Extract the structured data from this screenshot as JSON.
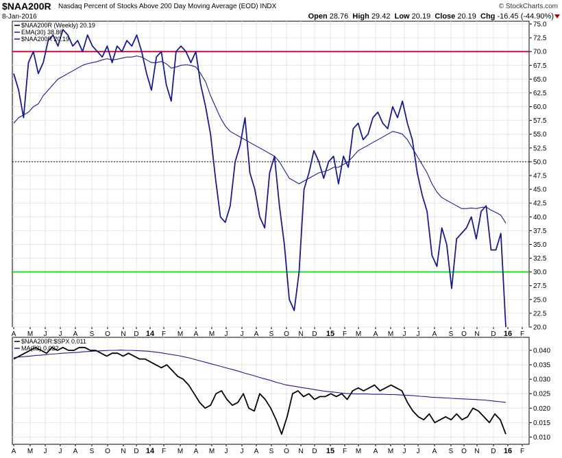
{
  "header": {
    "symbol": "$NAA200R",
    "description": "Nasdaq Percent of Stocks Above 200 Day Moving Average (EOD)  INDX",
    "date": "8-Jan-2016",
    "brand": "© StockCharts.com",
    "open_label": "Open",
    "open": "28.76",
    "high_label": "High",
    "high": "29.42",
    "low_label": "Low",
    "low": "20.19",
    "close_label": "Close",
    "close": "20.19",
    "chg_label": "Chg",
    "chg": "-16.45 (-44.90%)"
  },
  "chart_data": [
    {
      "type": "line",
      "title": "$NAA200R (Weekly) 20.19",
      "legend": [
        {
          "text": "$NAA200R (Weekly) 20.19",
          "color": "#000000"
        },
        {
          "text": "EMA(30) 38.86",
          "color": "#1a1a8c"
        },
        {
          "text": "$NAA200R 20.19",
          "color": "#1a1a8c"
        }
      ],
      "legend_placement": "top-left",
      "y_ticks": [
        "75.0",
        "72.5",
        "70.0",
        "67.5",
        "65.0",
        "62.5",
        "60.0",
        "57.5",
        "55.0",
        "52.5",
        "50.0",
        "47.5",
        "45.0",
        "42.5",
        "40.0",
        "37.5",
        "35.0",
        "32.5",
        "30.0",
        "27.5",
        "25.0",
        "22.5",
        "20.0"
      ],
      "ylim": [
        20,
        75.5
      ],
      "x_ticks": [
        "A",
        "M",
        "J",
        "J",
        "A",
        "S",
        "O",
        "N",
        "D",
        "14",
        "F",
        "M",
        "A",
        "M",
        "J",
        "J",
        "A",
        "S",
        "O",
        "N",
        "D",
        "15",
        "F",
        "M",
        "A",
        "M",
        "J",
        "J",
        "A",
        "S",
        "O",
        "N",
        "D",
        "16",
        "F"
      ],
      "reference_lines": [
        {
          "value": 70,
          "color": "#c0103c",
          "style": "solid"
        },
        {
          "value": 50,
          "color": "#000000",
          "style": "dotted"
        },
        {
          "value": 30,
          "color": "#22dd22",
          "style": "solid"
        }
      ],
      "series": [
        {
          "color": "#1a1a8c",
          "values": [
            66,
            63,
            58,
            68,
            70,
            66,
            68,
            72,
            73,
            71,
            74,
            73,
            71,
            72,
            70,
            73,
            71,
            70,
            69,
            71,
            68,
            71,
            70,
            72,
            71,
            73,
            70,
            66,
            63,
            69,
            70,
            64,
            61,
            70,
            71,
            70,
            68,
            70,
            64,
            60,
            55,
            47,
            40,
            39,
            42,
            50,
            53,
            58,
            48,
            45,
            40,
            38,
            48,
            51,
            42,
            35,
            25,
            23,
            30,
            45,
            48,
            52,
            50,
            47,
            50,
            51,
            46,
            51,
            49,
            56,
            57,
            54,
            55,
            58,
            59,
            57,
            56,
            60,
            58,
            61,
            57,
            54,
            48,
            44,
            41,
            33,
            31,
            38,
            35,
            27,
            36,
            37,
            38,
            40,
            36,
            41,
            42,
            34,
            34,
            37,
            20
          ]
        },
        {
          "color": "#1a1a8c",
          "values": [
            57,
            58,
            58.5,
            59,
            60,
            60.5,
            62,
            63,
            64,
            65,
            65.5,
            66,
            66.5,
            67,
            67.5,
            67.8,
            68,
            68.2,
            68.5,
            68.7,
            68.5,
            68.6,
            68.8,
            69,
            69,
            69.2,
            69,
            68.5,
            68,
            68,
            68.2,
            67.8,
            67,
            67.2,
            67.5,
            67.6,
            67.5,
            67.2,
            66,
            64.5,
            62,
            60,
            58,
            56.5,
            55.5,
            55,
            54.5,
            54,
            53.5,
            53,
            52.5,
            52,
            51.5,
            51,
            50,
            48.5,
            47,
            46.5,
            46,
            46.5,
            47,
            47.5,
            48,
            48.2,
            48.5,
            49,
            49,
            49.5,
            50,
            51,
            52,
            52.5,
            53,
            53.5,
            54,
            54.5,
            55,
            55.5,
            55.3,
            55,
            54,
            52.5,
            51,
            49.5,
            48,
            46,
            44.5,
            43.5,
            43,
            42.5,
            42,
            41.5,
            41.5,
            41.6,
            41.5,
            41.7,
            41.8,
            41.2,
            40.8,
            40.3,
            38.86
          ]
        }
      ]
    },
    {
      "type": "line",
      "title": "$NAA200R:$SPX 0.011",
      "legend": [
        {
          "text": "$NAA200R:$SPX 0.011",
          "color": "#000000"
        },
        {
          "text": "MA(52) 0.022",
          "color": "#1a1a8c"
        }
      ],
      "legend_placement": "top-left",
      "y_ticks": [
        "0.040",
        "0.035",
        "0.030",
        "0.025",
        "0.020",
        "0.015",
        "0.010"
      ],
      "ylim": [
        0.0075,
        0.0445
      ],
      "x_ticks": [
        "A",
        "M",
        "J",
        "J",
        "A",
        "S",
        "O",
        "N",
        "D",
        "14",
        "F",
        "M",
        "A",
        "M",
        "J",
        "J",
        "A",
        "S",
        "O",
        "N",
        "D",
        "15",
        "F",
        "M",
        "A",
        "M",
        "J",
        "J",
        "A",
        "S",
        "O",
        "N",
        "D",
        "16",
        "F"
      ],
      "series": [
        {
          "color": "#000000",
          "values": [
            0.037,
            0.038,
            0.039,
            0.04,
            0.041,
            0.04,
            0.039,
            0.041,
            0.04,
            0.041,
            0.04,
            0.04,
            0.041,
            0.041,
            0.04,
            0.04,
            0.039,
            0.038,
            0.039,
            0.039,
            0.038,
            0.039,
            0.038,
            0.037,
            0.037,
            0.036,
            0.035,
            0.034,
            0.035,
            0.033,
            0.031,
            0.03,
            0.028,
            0.025,
            0.022,
            0.02,
            0.021,
            0.025,
            0.026,
            0.023,
            0.021,
            0.022,
            0.025,
            0.02,
            0.019,
            0.025,
            0.023,
            0.02,
            0.016,
            0.011,
            0.017,
            0.025,
            0.026,
            0.024,
            0.025,
            0.023,
            0.024,
            0.024,
            0.025,
            0.024,
            0.025,
            0.023,
            0.026,
            0.027,
            0.026,
            0.027,
            0.028,
            0.026,
            0.027,
            0.028,
            0.027,
            0.026,
            0.022,
            0.019,
            0.017,
            0.016,
            0.018,
            0.015,
            0.016,
            0.017,
            0.016,
            0.018,
            0.016,
            0.017,
            0.02,
            0.019,
            0.017,
            0.015,
            0.018,
            0.016,
            0.011
          ]
        },
        {
          "color": "#1a1a8c",
          "values": [
            0.0375,
            0.0377,
            0.0378,
            0.038,
            0.0382,
            0.0383,
            0.0385,
            0.0387,
            0.0388,
            0.039,
            0.0391,
            0.0392,
            0.0393,
            0.0395,
            0.0396,
            0.0397,
            0.0398,
            0.0399,
            0.04,
            0.04,
            0.0401,
            0.04,
            0.04,
            0.0399,
            0.0398,
            0.0397,
            0.0395,
            0.0393,
            0.039,
            0.0387,
            0.0384,
            0.0381,
            0.0377,
            0.0373,
            0.0368,
            0.0363,
            0.0358,
            0.0353,
            0.0348,
            0.0343,
            0.0338,
            0.0333,
            0.0328,
            0.0322,
            0.0317,
            0.0312,
            0.0306,
            0.0301,
            0.0296,
            0.029,
            0.0285,
            0.028,
            0.0277,
            0.0274,
            0.0271,
            0.0268,
            0.0265,
            0.0262,
            0.0259,
            0.0257,
            0.0255,
            0.0253,
            0.0251,
            0.025,
            0.0249,
            0.0249,
            0.0249,
            0.0248,
            0.0248,
            0.0248,
            0.0247,
            0.0247,
            0.0246,
            0.0245,
            0.0244,
            0.0243,
            0.0241,
            0.024,
            0.0238,
            0.0237,
            0.0236,
            0.0235,
            0.0234,
            0.0233,
            0.0232,
            0.0231,
            0.023,
            0.0229,
            0.0228,
            0.0226,
            0.0224,
            0.0222,
            0.022
          ]
        }
      ]
    }
  ]
}
